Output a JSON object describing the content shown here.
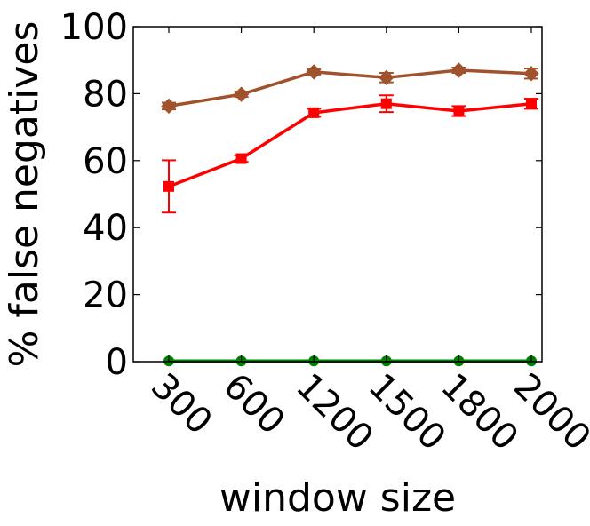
{
  "chart_data": {
    "type": "line",
    "title": "",
    "xlabel": "window size",
    "ylabel": "% false negatives",
    "categories": [
      "300",
      "600",
      "1200",
      "1500",
      "1800",
      "2000"
    ],
    "ylim": [
      0,
      100
    ],
    "yticks": [
      0,
      20,
      40,
      60,
      80,
      100
    ],
    "grid": false,
    "legend": "none",
    "series": [
      {
        "color": "#a0522d",
        "marker": "diamond",
        "values": [
          76.3,
          79.8,
          86.5,
          84.8,
          87.0,
          86.0
        ],
        "errors": [
          1.0,
          0.8,
          0.8,
          1.4,
          0.8,
          1.5
        ]
      },
      {
        "color": "#ff0000",
        "marker": "square",
        "values": [
          52.3,
          60.6,
          74.3,
          77.0,
          74.8,
          77.0
        ],
        "errors": [
          7.8,
          1.0,
          1.2,
          2.5,
          1.5,
          1.5
        ]
      },
      {
        "color": "#008000",
        "marker": "circle",
        "values": [
          0.2,
          0.2,
          0.2,
          0.2,
          0.2,
          0.2
        ],
        "errors": [
          0,
          0,
          0,
          0,
          0,
          0
        ]
      }
    ]
  }
}
